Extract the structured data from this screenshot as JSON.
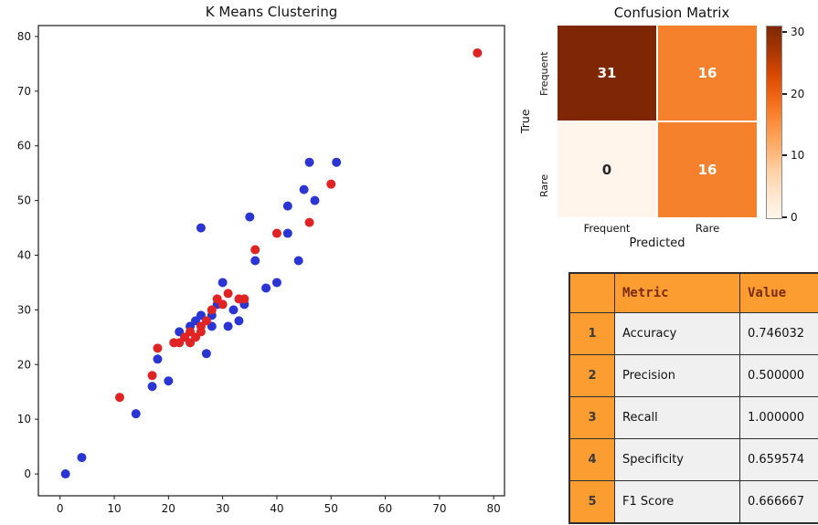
{
  "chart_data": [
    {
      "type": "scatter",
      "title": "K Means Clustering",
      "xlabel": "",
      "ylabel": "",
      "xlim": [
        -4,
        82
      ],
      "ylim": [
        -4,
        82
      ],
      "xticks": [
        0,
        10,
        20,
        30,
        40,
        50,
        60,
        70,
        80
      ],
      "yticks": [
        0,
        10,
        20,
        30,
        40,
        50,
        60,
        70,
        80
      ],
      "grid": false,
      "legend": "none",
      "series": [
        {
          "name": "cluster_blue",
          "color": "#2a35d3",
          "points": [
            [
              1,
              0
            ],
            [
              4,
              3
            ],
            [
              14,
              11
            ],
            [
              17,
              16
            ],
            [
              18,
              21
            ],
            [
              20,
              17
            ],
            [
              22,
              26
            ],
            [
              23,
              25
            ],
            [
              24,
              27
            ],
            [
              25,
              28
            ],
            [
              26,
              29
            ],
            [
              26,
              45
            ],
            [
              27,
              22
            ],
            [
              28,
              27
            ],
            [
              28,
              29
            ],
            [
              29,
              31
            ],
            [
              30,
              35
            ],
            [
              31,
              27
            ],
            [
              32,
              30
            ],
            [
              33,
              28
            ],
            [
              34,
              31
            ],
            [
              35,
              47
            ],
            [
              36,
              39
            ],
            [
              38,
              34
            ],
            [
              40,
              35
            ],
            [
              42,
              44
            ],
            [
              42,
              49
            ],
            [
              44,
              39
            ],
            [
              45,
              52
            ],
            [
              46,
              57
            ],
            [
              47,
              50
            ],
            [
              51,
              57
            ]
          ]
        },
        {
          "name": "cluster_red",
          "color": "#e02424",
          "points": [
            [
              11,
              14
            ],
            [
              17,
              18
            ],
            [
              18,
              23
            ],
            [
              21,
              24
            ],
            [
              22,
              24
            ],
            [
              23,
              25
            ],
            [
              24,
              24
            ],
            [
              24,
              26
            ],
            [
              25,
              25
            ],
            [
              26,
              26
            ],
            [
              26,
              27
            ],
            [
              27,
              28
            ],
            [
              28,
              30
            ],
            [
              29,
              32
            ],
            [
              30,
              31
            ],
            [
              31,
              33
            ],
            [
              33,
              32
            ],
            [
              34,
              32
            ],
            [
              36,
              41
            ],
            [
              40,
              44
            ],
            [
              46,
              46
            ],
            [
              50,
              53
            ],
            [
              77,
              77
            ]
          ]
        }
      ]
    },
    {
      "type": "heatmap",
      "title": "Confusion Matrix",
      "xlabel": "Predicted",
      "ylabel": "True",
      "x_categories": [
        "Frequent",
        "Rare"
      ],
      "y_categories": [
        "Frequent",
        "Rare"
      ],
      "values": [
        [
          31,
          16
        ],
        [
          0,
          16
        ]
      ],
      "cell_colors": [
        [
          "#7f2704",
          "#f5812c"
        ],
        [
          "#fff5eb",
          "#f5812c"
        ]
      ],
      "cell_text_colors": [
        [
          "#ffffff",
          "#ffffff"
        ],
        [
          "#262626",
          "#ffffff"
        ]
      ],
      "colorbar": {
        "colormap": "Oranges",
        "vmin": 0,
        "vmax": 31,
        "ticks": [
          0,
          10,
          20,
          30
        ]
      }
    },
    {
      "type": "table",
      "columns": [
        "",
        "Metric",
        "Value"
      ],
      "rows": [
        [
          "1",
          "Accuracy",
          "0.746032"
        ],
        [
          "2",
          "Precision",
          "0.500000"
        ],
        [
          "3",
          "Recall",
          "1.000000"
        ],
        [
          "4",
          "Specificity",
          "0.659574"
        ],
        [
          "5",
          "F1 Score",
          "0.666667"
        ]
      ],
      "header_bg": "#fb9d31",
      "header_text_color": "#7a2d0e",
      "index_bg": "#fb9d31",
      "index_text_color": "#3a3a3a",
      "cell_bg": "#f0f0f0"
    }
  ]
}
